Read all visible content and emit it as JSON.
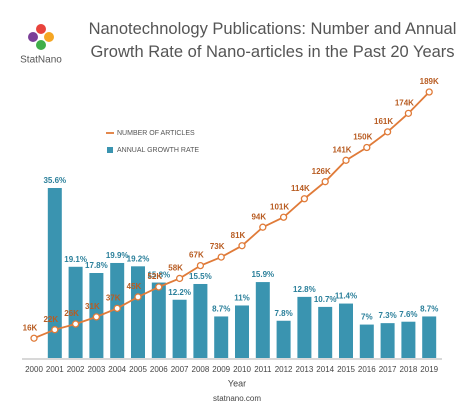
{
  "logo_text": "StatNano",
  "chart_data": {
    "type": "combo",
    "title": "Nanotechnology Publications: Number and Annual Growth Rate of Nano-articles in the Past 20 Years",
    "x_label": "Year",
    "source": "statnano.com",
    "categories": [
      "2000",
      "2001",
      "2002",
      "2003",
      "2004",
      "2005",
      "2006",
      "2007",
      "2008",
      "2009",
      "2010",
      "2011",
      "2012",
      "2013",
      "2014",
      "2015",
      "2016",
      "2017",
      "2018",
      "2019"
    ],
    "series": [
      {
        "name": "ANNUAL GROWTH RATE",
        "type": "bar",
        "color": "#3a94b0",
        "values": [
          null,
          35.6,
          19.1,
          17.8,
          19.9,
          19.2,
          15.8,
          12.2,
          15.5,
          8.7,
          11,
          15.9,
          7.8,
          12.8,
          10.7,
          11.4,
          7,
          7.3,
          7.6,
          8.7
        ],
        "value_labels": [
          null,
          "35.6%",
          "19.1%",
          "17.8%",
          "19.9%",
          "19.2%",
          "15.8%",
          "12.2%",
          "15.5%",
          "8.7%",
          "11%",
          "15.9%",
          "7.8%",
          "12.8%",
          "10.7%",
          "11.4%",
          "7%",
          "7.3%",
          "7.6%",
          "8.7%"
        ]
      },
      {
        "name": "NUMBER OF ARTICLES",
        "type": "line",
        "color": "#e07b39",
        "values": [
          16,
          22,
          26,
          31,
          37,
          45,
          52,
          58,
          67,
          73,
          81,
          94,
          101,
          114,
          126,
          141,
          150,
          161,
          174,
          189
        ],
        "value_labels": [
          "16K",
          "22K",
          "26K",
          "31K",
          "37K",
          "45K",
          "52K",
          "58K",
          "67K",
          "73K",
          "81K",
          "94K",
          "101K",
          "114K",
          "126K",
          "141K",
          "150K",
          "161K",
          "174K",
          "189K"
        ]
      }
    ]
  }
}
